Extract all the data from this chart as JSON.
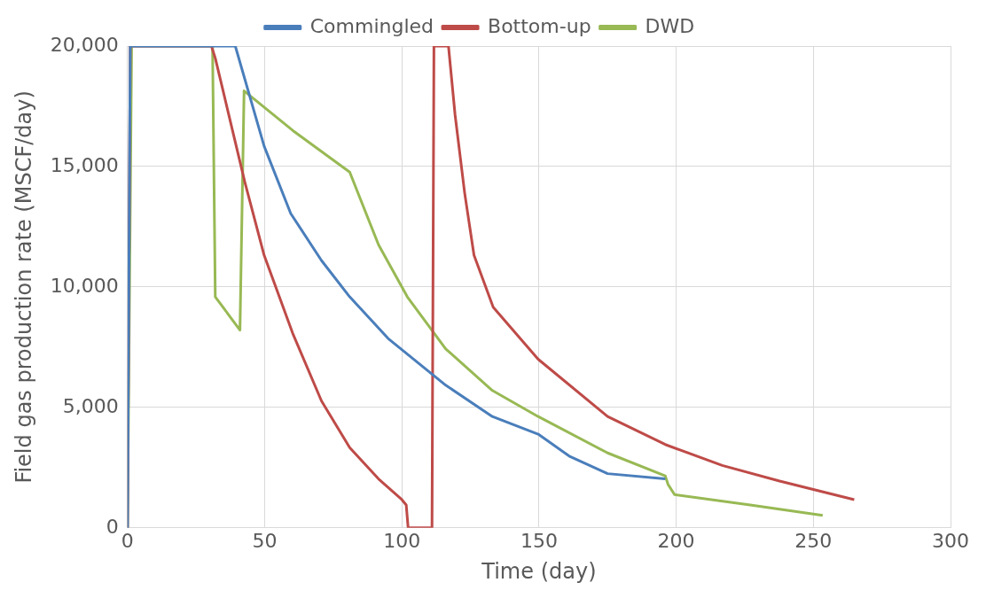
{
  "chart_data": {
    "type": "line",
    "xlabel": "Time (day)",
    "ylabel": "Field gas production rate (MSCF/day)",
    "xlim": [
      0,
      300
    ],
    "xticks": [
      0,
      50,
      100,
      150,
      200,
      250,
      300
    ],
    "ylim": [
      0,
      20000
    ],
    "yticks": [
      {
        "value": 0,
        "label": "0"
      },
      {
        "value": 5000,
        "label": "5,000"
      },
      {
        "value": 10000,
        "label": "10,000"
      },
      {
        "value": 15000,
        "label": "15,000"
      },
      {
        "value": 20000,
        "label": "20,000"
      }
    ],
    "grid": true,
    "legend": "top",
    "marker": "none",
    "line_style": "solid",
    "series": [
      {
        "name": "Commingled",
        "color": "#4a7ebb",
        "x": [
          0,
          1,
          39.3,
          49.8,
          59.5,
          70.7,
          81,
          95,
          116,
          133,
          149.7,
          161,
          175,
          196
        ],
        "values": [
          0,
          20000,
          20000,
          15850,
          13050,
          11100,
          9590,
          7860,
          5920,
          4620,
          3890,
          2980,
          2250,
          2030
        ]
      },
      {
        "name": "Bottom-up",
        "color": "#be4b48",
        "x": [
          0,
          1,
          30.6,
          32,
          42.8,
          49.8,
          60.2,
          70.7,
          81,
          91.5,
          100,
          101.6,
          102.3,
          111,
          111.7,
          117,
          119.4,
          122.9,
          126.3,
          133.3,
          149.7,
          175,
          196,
          216.8,
          237.7,
          264.9
        ],
        "values": [
          0,
          20000,
          20000,
          19500,
          14340,
          11320,
          8080,
          5270,
          3330,
          2030,
          1170,
          950,
          0,
          0,
          20000,
          20000,
          17150,
          13900,
          11320,
          9160,
          7000,
          4620,
          3460,
          2590,
          1940,
          1170
        ]
      },
      {
        "name": "DWD",
        "color": "#98b954",
        "x": [
          0,
          1.5,
          31,
          32,
          41,
          42.5,
          60.2,
          81,
          91.5,
          102,
          116,
          133,
          149.7,
          175,
          196,
          197,
          199.4,
          227,
          253.4
        ],
        "values": [
          0,
          20000,
          20000,
          9590,
          8210,
          18140,
          16500,
          14770,
          11750,
          9590,
          7430,
          5700,
          4620,
          3110,
          2160,
          1810,
          1380,
          950,
          520
        ]
      }
    ]
  }
}
